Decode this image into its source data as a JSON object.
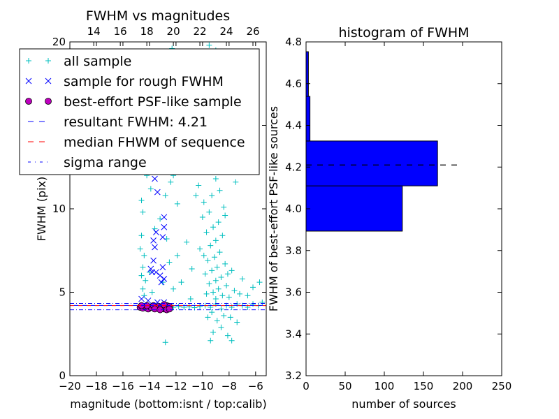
{
  "chart_data": [
    {
      "type": "scatter",
      "title": "FWHM vs magnitudes",
      "xlabel": "magnitude (bottom:isnt / top:calib)",
      "ylabel": "FWHM (pix)",
      "xlim": [
        -20,
        -5.2
      ],
      "ylim": [
        0,
        20
      ],
      "xticks": [
        -20,
        -18,
        -16,
        -14,
        -12,
        -10,
        -8,
        -6
      ],
      "xtick_labels": [
        "−20",
        "−18",
        "−16",
        "−14",
        "−12",
        "−10",
        "−8",
        "−6"
      ],
      "yticks": [
        0,
        5,
        10,
        15,
        20
      ],
      "ytick_labels": [
        "0",
        "5",
        "10",
        "15",
        "20"
      ],
      "top_axis": {
        "offset_calib_minus_isnt": 32.2,
        "ticks": [
          14,
          16,
          18,
          20,
          22,
          24,
          26
        ],
        "tick_labels": [
          "14",
          "16",
          "18",
          "20",
          "22",
          "24",
          "26"
        ]
      },
      "grid": false,
      "legend": {
        "placement": "upper-left",
        "entries": [
          {
            "label": "all sample",
            "marker": "plus",
            "color": "#00bfbf"
          },
          {
            "label": "sample for rough FWHM",
            "marker": "x",
            "color": "#0000ff"
          },
          {
            "label": "best-effort PSF-like sample",
            "marker": "circle",
            "color": "#bf00bf"
          },
          {
            "label": "resultant FWHM: 4.21",
            "marker": "dashed",
            "color": "#0000ff"
          },
          {
            "label": "median FHWM of sequence",
            "marker": "dashed",
            "color": "#ff0000"
          },
          {
            "label": "sigma range",
            "marker": "dashdot",
            "color": "#0000ff"
          }
        ]
      },
      "hlines": {
        "resultant_fwhm": 4.21,
        "median_fwhm": 4.2,
        "sigma_range": [
          3.95,
          4.33
        ]
      },
      "series": [
        {
          "name": "all sample",
          "color": "#00bfbf",
          "points": [
            [
              -14.6,
              4.1
            ],
            [
              -14.2,
              4.15
            ],
            [
              -13.8,
              4.05
            ],
            [
              -13.4,
              4.1
            ],
            [
              -13,
              4.12
            ],
            [
              -12.6,
              4.08
            ],
            [
              -12.2,
              4.1
            ],
            [
              -11.8,
              4.15
            ],
            [
              -11.4,
              4.1
            ],
            [
              -11,
              4.12
            ],
            [
              -10.6,
              4.08
            ],
            [
              -10.2,
              4.15
            ],
            [
              -9.8,
              4.2
            ],
            [
              -9.4,
              4.1
            ],
            [
              -9,
              4.3
            ],
            [
              -8.6,
              4.0
            ],
            [
              -8.2,
              4.2
            ],
            [
              -7.8,
              4.1
            ],
            [
              -7.4,
              4.3
            ],
            [
              -7,
              4.2
            ],
            [
              -6.6,
              4.1
            ],
            [
              -6.2,
              4.3
            ],
            [
              -5.8,
              4.2
            ],
            [
              -5.5,
              4.4
            ],
            [
              -9.5,
              19.8
            ],
            [
              -9.0,
              19.5
            ],
            [
              -10.2,
              18.5
            ],
            [
              -8.8,
              18
            ],
            [
              -9.6,
              17.2
            ],
            [
              -9.2,
              16.5
            ],
            [
              -10.4,
              16
            ],
            [
              -8.6,
              15.5
            ],
            [
              -9.8,
              15
            ],
            [
              -9.1,
              14.6
            ],
            [
              -10.6,
              14.2
            ],
            [
              -8.9,
              13.8
            ],
            [
              -9.4,
              13.3
            ],
            [
              -10.1,
              12.9
            ],
            [
              -8.5,
              12.5
            ],
            [
              -9.7,
              12.2
            ],
            [
              -9.0,
              11.8
            ],
            [
              -10.3,
              11.4
            ],
            [
              -8.7,
              11.1
            ],
            [
              -9.3,
              10.8
            ],
            [
              -9.9,
              10.4
            ],
            [
              -8.4,
              10.1
            ],
            [
              -9.5,
              9.8
            ],
            [
              -10.0,
              9.5
            ],
            [
              -8.8,
              9.2
            ],
            [
              -9.2,
              8.9
            ],
            [
              -9.7,
              8.6
            ],
            [
              -8.5,
              8.4
            ],
            [
              -9.0,
              8.1
            ],
            [
              -9.4,
              7.8
            ],
            [
              -10.2,
              7.6
            ],
            [
              -8.7,
              7.4
            ],
            [
              -9.1,
              7.1
            ],
            [
              -9.6,
              6.9
            ],
            [
              -8.3,
              6.7
            ],
            [
              -8.9,
              6.5
            ],
            [
              -9.3,
              6.3
            ],
            [
              -9.8,
              6.1
            ],
            [
              -8.6,
              5.9
            ],
            [
              -9.0,
              5.7
            ],
            [
              -9.5,
              5.5
            ],
            [
              -8.2,
              5.4
            ],
            [
              -8.8,
              5.2
            ],
            [
              -9.2,
              5.0
            ],
            [
              -9.7,
              4.9
            ],
            [
              -8.5,
              4.8
            ],
            [
              -9.0,
              4.6
            ],
            [
              -8.0,
              4.7
            ],
            [
              -7.6,
              5.1
            ],
            [
              -7.2,
              4.9
            ],
            [
              -8.4,
              3.6
            ],
            [
              -8.9,
              3.3
            ],
            [
              -9.3,
              3.8
            ],
            [
              -7.9,
              3.5
            ],
            [
              -8.6,
              2.9
            ],
            [
              -9.6,
              3.5
            ],
            [
              -8.1,
              2.4
            ],
            [
              -9.4,
              2.1
            ],
            [
              -10.8,
              6.4
            ],
            [
              -11.2,
              8.0
            ],
            [
              -11.6,
              5.6
            ],
            [
              -11.9,
              10.3
            ],
            [
              -12.2,
              12.0
            ],
            [
              -7.4,
              3.2
            ],
            [
              -6.6,
              4.8
            ],
            [
              -6.2,
              5.3
            ],
            [
              -5.7,
              5.6
            ],
            [
              -10.9,
              4.6
            ],
            [
              -8.3,
              9.6
            ],
            [
              -9.9,
              7.2
            ],
            [
              -8.1,
              6.1
            ],
            [
              -7.8,
              6.3
            ],
            [
              -7.0,
              5.8
            ],
            [
              -10.5,
              10.8
            ],
            [
              -11.4,
              13.6
            ],
            [
              -11.0,
              15.0
            ],
            [
              -12.3,
              19.6
            ],
            [
              -11.0,
              19.4
            ],
            [
              -12.5,
              16.3
            ],
            [
              -7.5,
              11.6
            ],
            [
              -8.0,
              16.0
            ],
            [
              -14.6,
              10.5
            ],
            [
              -14.5,
              9.8
            ],
            [
              -14.7,
              7.6
            ],
            [
              -14.4,
              7.2
            ],
            [
              -14.5,
              6.5
            ],
            [
              -14.6,
              6.0
            ],
            [
              -14.3,
              5.7
            ],
            [
              -14.5,
              5.2
            ],
            [
              -14.4,
              4.8
            ],
            [
              -14.6,
              8.4
            ],
            [
              -14.2,
              12.0
            ],
            [
              -14.4,
              13.0
            ],
            [
              -13.9,
              11.2
            ],
            [
              -13.4,
              12.4
            ],
            [
              -13.2,
              9.4
            ],
            [
              -12.8,
              10.8
            ],
            [
              -12.7,
              8.2
            ],
            [
              -12.5,
              6.8
            ],
            [
              -13.6,
              8.8
            ],
            [
              -13.0,
              5.6
            ],
            [
              -12.2,
              5.2
            ],
            [
              -11.9,
              7.2
            ],
            [
              -13.8,
              5.0
            ],
            [
              -14.0,
              6.2
            ],
            [
              -12.4,
              11.6
            ],
            [
              -13.5,
              15.5
            ],
            [
              -14.1,
              16.8
            ],
            [
              -13.1,
              18.2
            ],
            [
              -12.8,
              2.0
            ],
            [
              -9.2,
              2.6
            ],
            [
              -7.8,
              2.1
            ]
          ]
        },
        {
          "name": "sample for rough FWHM",
          "color": "#0000ff",
          "points": [
            [
              -13.6,
              11.8
            ],
            [
              -13.4,
              11.0
            ],
            [
              -12.9,
              9.5
            ],
            [
              -12.9,
              8.9
            ],
            [
              -13.5,
              8.6
            ],
            [
              -13.7,
              8.1
            ],
            [
              -13.0,
              8.3
            ],
            [
              -13.6,
              7.7
            ],
            [
              -13.7,
              6.9
            ],
            [
              -13.0,
              6.5
            ],
            [
              -13.9,
              6.4
            ],
            [
              -13.8,
              6.2
            ],
            [
              -13.5,
              6.2
            ],
            [
              -13.2,
              6.0
            ],
            [
              -12.9,
              5.8
            ],
            [
              -13.1,
              5.6
            ],
            [
              -14.6,
              4.6
            ],
            [
              -14.1,
              4.5
            ],
            [
              -12.9,
              4.4
            ],
            [
              -13.4,
              4.4
            ]
          ]
        },
        {
          "name": "best-effort PSF-like sample",
          "color": "#bf00bf",
          "points": [
            [
              -14.7,
              4.1
            ],
            [
              -14.5,
              4.05
            ],
            [
              -14.3,
              4.15
            ],
            [
              -14.1,
              4.0
            ],
            [
              -13.9,
              4.1
            ],
            [
              -13.7,
              4.2
            ],
            [
              -13.5,
              4.05
            ],
            [
              -13.3,
              4.15
            ],
            [
              -13.1,
              4.1
            ],
            [
              -12.9,
              4.0
            ],
            [
              -12.7,
              4.2
            ],
            [
              -12.6,
              4.05
            ],
            [
              -12.5,
              4.15
            ],
            [
              -12.9,
              4.25
            ],
            [
              -13.6,
              4.0
            ],
            [
              -14.2,
              4.2
            ],
            [
              -14.6,
              4.2
            ],
            [
              -13.2,
              3.95
            ],
            [
              -12.7,
              3.95
            ],
            [
              -12.5,
              4.0
            ]
          ]
        }
      ]
    },
    {
      "type": "bar",
      "orientation": "horizontal",
      "title": "histogram of FWHM",
      "xlabel": "number of sources",
      "ylabel": "FWHM of best-effort PSF-like sources",
      "xlim": [
        0,
        250
      ],
      "ylim": [
        3.2,
        4.8
      ],
      "xticks": [
        0,
        50,
        100,
        150,
        200,
        250
      ],
      "xtick_labels": [
        "0",
        "50",
        "100",
        "150",
        "200",
        "250"
      ],
      "yticks": [
        3.2,
        3.4,
        3.6,
        3.8,
        4.0,
        4.2,
        4.4,
        4.6,
        4.8
      ],
      "ytick_labels": [
        "3.2",
        "3.4",
        "3.6",
        "3.8",
        "4.0",
        "4.2",
        "4.4",
        "4.6",
        "4.8"
      ],
      "bar_color": "#0000ff",
      "bins": [
        [
          3.893,
          4.11
        ],
        [
          4.11,
          4.325
        ],
        [
          4.325,
          4.539
        ],
        [
          4.539,
          4.753
        ]
      ],
      "values": [
        123,
        168,
        5,
        3
      ],
      "hline": {
        "value": 4.21,
        "xmax": 200,
        "style": "dashed",
        "color": "#000000"
      },
      "grid": false
    }
  ]
}
